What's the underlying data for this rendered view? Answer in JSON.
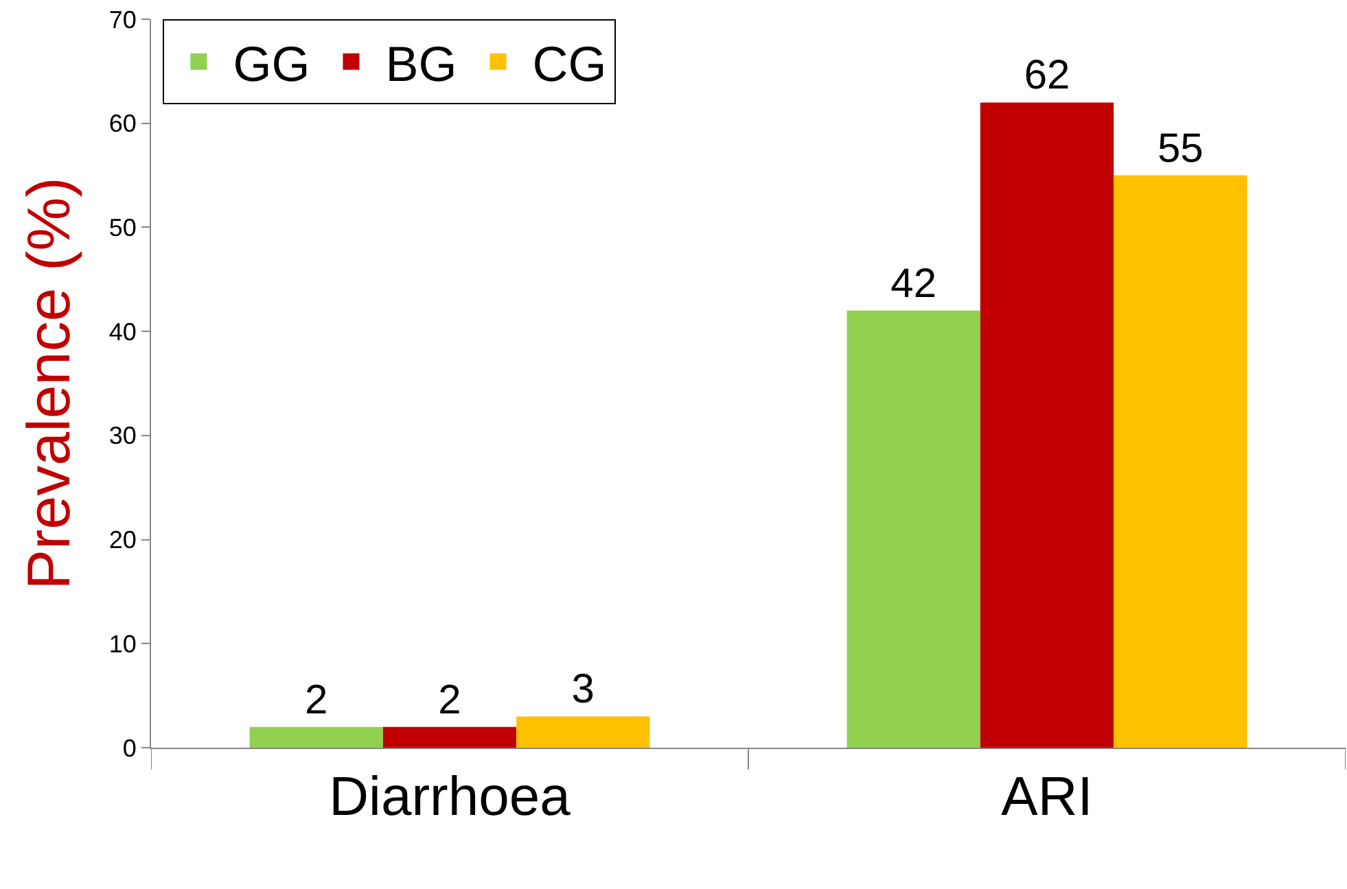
{
  "chart_data": {
    "type": "bar",
    "ylabel": "Prevalence (%)",
    "categories": [
      "Diarrhoea",
      "ARI"
    ],
    "series": [
      {
        "name": "GG",
        "color": "#92d050",
        "values": [
          2,
          42
        ]
      },
      {
        "name": "BG",
        "color": "#c00000",
        "values": [
          2,
          62
        ]
      },
      {
        "name": "CG",
        "color": "#ffc000",
        "values": [
          3,
          55
        ]
      }
    ],
    "ylim": [
      0,
      70
    ],
    "yticks": [
      0,
      10,
      20,
      30,
      40,
      50,
      60,
      70
    ],
    "data_labels": true,
    "legend": "top left"
  }
}
